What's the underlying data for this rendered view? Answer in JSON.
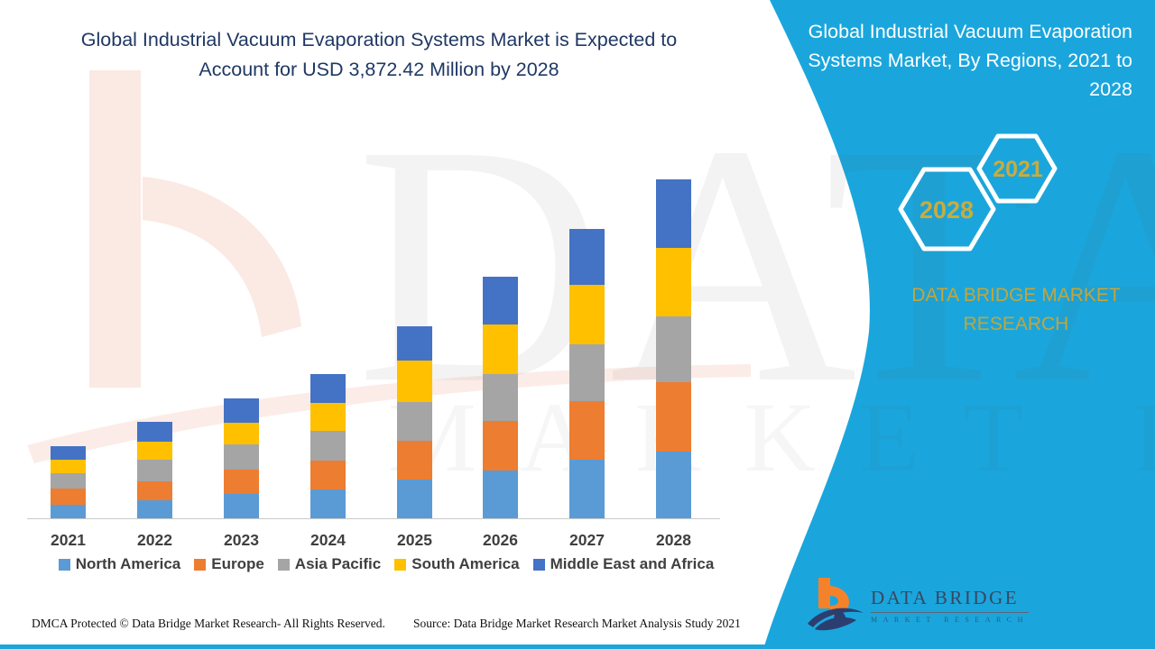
{
  "colors": {
    "panel_blue": "#1AA6DC",
    "title_navy": "#1F3864",
    "gold": "#C3A53C",
    "hex_gold": "#C9AC3E",
    "axis_gray": "#C9C9C9",
    "label_gray": "#3F3F3F",
    "logo_orange": "#F5822A",
    "logo_navy": "#2C3E70",
    "watermark_peach": "#FBE9E3"
  },
  "left_title": "Global Industrial Vacuum Evaporation Systems Market is Expected to Account for USD 3,872.42 Million by 2028",
  "right_panel": {
    "title": "Global Industrial Vacuum Evaporation Systems Market, By Regions, 2021 to 2028",
    "hexagon_back_year": "2028",
    "hexagon_front_year": "2021",
    "brand": "DATA BRIDGE MARKET RESEARCH"
  },
  "watermark": {
    "line1": "DATA BRIDGE",
    "line2": "MARKET RESEARCH"
  },
  "logo": {
    "line1": "DATA BRIDGE",
    "line2": "MARKET RESEARCH"
  },
  "footer": {
    "dmca": "DMCA Protected © Data Bridge Market Research- All Rights Reserved.",
    "source": "Source: Data Bridge Market Research Market Analysis Study 2021"
  },
  "chart_data": {
    "type": "bar",
    "stacked": true,
    "unit": "USD Million",
    "title": "Global Industrial Vacuum Evaporation Systems Market, By Regions, 2021 to 2028",
    "highlight_value": "USD 3,872.42 Million by 2028",
    "categories": [
      "2021",
      "2022",
      "2023",
      "2024",
      "2025",
      "2026",
      "2027",
      "2028"
    ],
    "series": [
      {
        "name": "North America",
        "color": "#5B9BD5",
        "values": [
          155,
          206,
          275,
          333,
          443,
          546,
          670,
          762
        ]
      },
      {
        "name": "Europe",
        "color": "#ED7D31",
        "values": [
          180,
          216,
          285,
          326,
          443,
          567,
          670,
          793
        ]
      },
      {
        "name": "Asia Pacific",
        "color": "#A5A5A5",
        "values": [
          178,
          247,
          281,
          337,
          443,
          536,
          649,
          752
        ]
      },
      {
        "name": "South America",
        "color": "#FFC000",
        "values": [
          155,
          209,
          250,
          322,
          474,
          567,
          680,
          783
        ]
      },
      {
        "name": "Middle East and Africa",
        "color": "#4472C4",
        "values": [
          158,
          219,
          281,
          330,
          391,
          546,
          639,
          782.42
        ]
      }
    ],
    "totals": [
      826,
      1097,
      1372,
      1648,
      2194,
      2762,
      3308,
      3872.42
    ],
    "ylim": [
      0,
      3900
    ],
    "grid": false,
    "legend_position": "bottom",
    "axis_labels_shown": "x-only"
  }
}
